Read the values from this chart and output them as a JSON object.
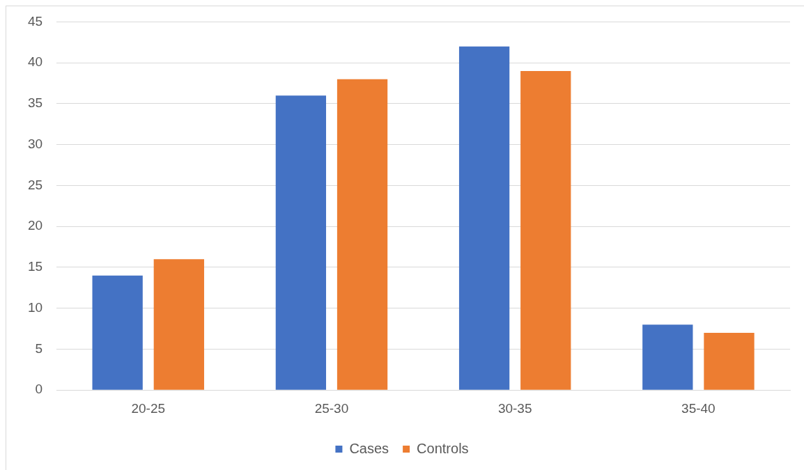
{
  "chart_data": {
    "type": "bar",
    "categories": [
      "20-25",
      "25-30",
      "30-35",
      "35-40"
    ],
    "series": [
      {
        "name": "Cases",
        "color": "#4472c4",
        "values": [
          14,
          36,
          42,
          8
        ]
      },
      {
        "name": "Controls",
        "color": "#ed7d31",
        "values": [
          16,
          38,
          39,
          7
        ]
      }
    ],
    "ylim": [
      0,
      45
    ],
    "yticks": [
      0,
      5,
      10,
      15,
      20,
      25,
      30,
      35,
      40,
      45
    ],
    "grid": "y",
    "legend": "bottom"
  }
}
